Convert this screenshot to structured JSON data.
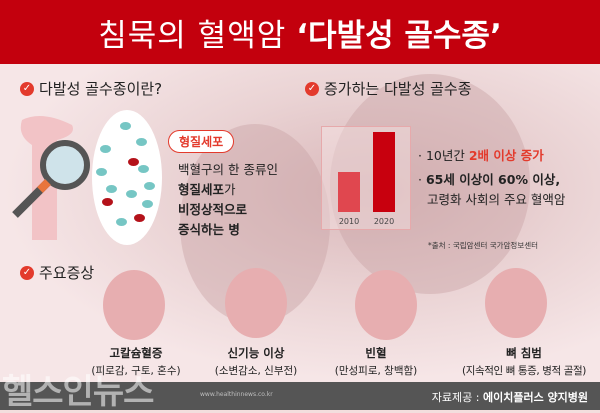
{
  "header": {
    "title_plain": "침묵의 혈액암",
    "title_bold": "‘다발성 골수종’"
  },
  "section_what": {
    "title": "다발성 골수종이란?",
    "tag": "형질세포",
    "desc_lines": [
      "백혈구의 한 종류인",
      "형질세포",
      "가",
      "비정상적으로",
      "증식하는 병"
    ]
  },
  "section_increase": {
    "title": "증가하는 다발성 골수종",
    "bullet1_prefix": "10년간 ",
    "bullet1_highlight": "2배 이상 증가",
    "bullet2_line1": "65세 이상이 60% 이상,",
    "bullet2_line2": "고령화 사회의 주요 혈액암",
    "source": "*출처 : 국립암센터 국가암정보센터"
  },
  "chart_data": {
    "type": "bar",
    "categories": [
      "2010",
      "2020"
    ],
    "values": [
      1,
      2
    ],
    "colors": [
      "#e0474f",
      "#c8000e"
    ]
  },
  "section_symptoms": {
    "title": "주요증상",
    "items": [
      {
        "name": "고칼슘혈증",
        "detail": "(피로감, 구토, 혼수)",
        "icon": "tired-person-laptop-icon"
      },
      {
        "name": "신기능 이상",
        "detail": "(소변감소, 신부전)",
        "icon": "kidney-icon"
      },
      {
        "name": "빈혈",
        "detail": "(만성피로, 창백함)",
        "icon": "dizzy-person-icon"
      },
      {
        "name": "뼈 침범",
        "detail": "(지속적인 뼈 통증, 병적 골절)",
        "icon": "knee-bone-icon"
      }
    ]
  },
  "footer": {
    "logo": "헬스인뉴스",
    "url": "www.healthinnews.co.kr",
    "credit_label": "자료제공 : ",
    "credit_value": "에이치플러스 양지병원"
  },
  "colors": {
    "header_red": "#c3000d",
    "accent": "#e33a2c",
    "footer": "#555555"
  }
}
